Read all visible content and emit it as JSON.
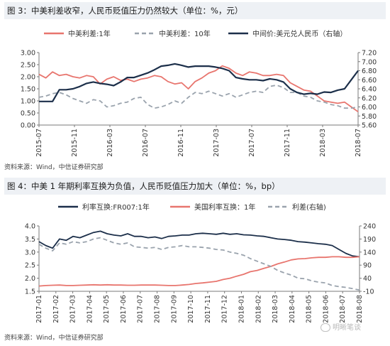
{
  "figure1": {
    "title": "图 3：中美利差收窄，人民币贬值压力仍然较大（单位：%，元）",
    "source": "资料来源：Wind，中信证券研究部"
  },
  "figure2": {
    "title": "图 4：中美 1 年期利率互换为负值，人民币贬值压力加大（单位：%，bp）",
    "source": "资料来源：Wind，中信证券研究部"
  },
  "watermark": "明晰笔谈",
  "chart_data": [
    {
      "type": "line",
      "x_labels": [
        "2015-07",
        "2015-11",
        "2016-03",
        "2016-07",
        "2016-11",
        "2017-03",
        "2017-07",
        "2017-11",
        "2018-03",
        "2018-07"
      ],
      "ylim_left": [
        0.0,
        3.0
      ],
      "yticks_left": [
        "3.00",
        "2.50",
        "2.00",
        "1.50",
        "1.00",
        "0.50",
        "0.00"
      ],
      "ylim_right": [
        5.6,
        7.2
      ],
      "yticks_right": [
        "7.20",
        "7.00",
        "6.80",
        "6.60",
        "6.40",
        "6.20",
        "6.00",
        "5.80",
        "5.60"
      ],
      "grid": false,
      "legend_position": "top",
      "series": [
        {
          "name": "中美利差:1年",
          "axis": "left",
          "color": "#e8756e",
          "dash": "",
          "values": [
            2.1,
            1.95,
            2.2,
            2.05,
            2.1,
            2.0,
            1.95,
            2.05,
            2.0,
            1.7,
            1.9,
            2.0,
            1.85,
            1.9,
            1.8,
            1.9,
            1.95,
            2.05,
            2.0,
            1.8,
            1.7,
            1.75,
            1.5,
            1.8,
            1.95,
            2.15,
            2.25,
            2.45,
            2.35,
            2.15,
            2.05,
            2.2,
            2.15,
            2.05,
            2.05,
            2.1,
            2.05,
            1.75,
            1.6,
            1.45,
            1.4,
            1.2,
            1.0,
            0.95,
            0.9,
            0.95,
            0.75,
            0.55
          ]
        },
        {
          "name": "中美利差：10年",
          "axis": "left",
          "color": "#9aa3ad",
          "dash": "6,4",
          "values": [
            1.15,
            1.2,
            1.3,
            1.35,
            1.25,
            1.1,
            1.0,
            0.9,
            1.05,
            1.0,
            0.75,
            0.8,
            0.9,
            0.95,
            1.1,
            1.15,
            0.85,
            0.7,
            0.75,
            0.85,
            1.0,
            0.9,
            1.15,
            1.35,
            1.3,
            1.4,
            1.3,
            1.2,
            1.3,
            1.15,
            1.25,
            1.35,
            1.4,
            1.35,
            1.6,
            1.65,
            1.55,
            1.35,
            1.35,
            1.2,
            1.15,
            1.0,
            0.95,
            0.85,
            0.8,
            0.7,
            0.7,
            0.75
          ]
        },
        {
          "name": "中间价:美元兑人民币（右轴）",
          "axis": "right",
          "color": "#1c2f4a",
          "dash": "",
          "values": [
            6.12,
            6.12,
            6.12,
            6.38,
            6.38,
            6.4,
            6.45,
            6.52,
            6.55,
            6.52,
            6.5,
            6.47,
            6.55,
            6.65,
            6.65,
            6.7,
            6.75,
            6.82,
            6.9,
            6.92,
            6.95,
            6.92,
            6.88,
            6.9,
            6.9,
            6.9,
            6.88,
            6.85,
            6.8,
            6.65,
            6.62,
            6.6,
            6.6,
            6.58,
            6.62,
            6.6,
            6.55,
            6.4,
            6.32,
            6.28,
            6.3,
            6.28,
            6.33,
            6.32,
            6.37,
            6.4,
            6.6,
            6.8
          ]
        }
      ]
    },
    {
      "type": "line",
      "x_labels": [
        "2017-01",
        "2017-02",
        "2017-03",
        "2017-04",
        "2017-05",
        "2017-06",
        "2017-07",
        "2017-08",
        "2017-09",
        "2017-10",
        "2017-11",
        "2017-12",
        "2018-01",
        "2018-02",
        "2018-03",
        "2018-04",
        "2018-05",
        "2018-06",
        "2018-07",
        "2018-08"
      ],
      "ylim_left": [
        1.5,
        4.0
      ],
      "yticks_left": [
        "4.0",
        "3.5",
        "3.0",
        "2.5",
        "2.0",
        "1.5"
      ],
      "ylim_right": [
        -10,
        240
      ],
      "yticks_right": [
        "240",
        "190",
        "140",
        "90",
        "40",
        "-10"
      ],
      "grid": false,
      "legend_position": "top",
      "series": [
        {
          "name": "利率互换:FR007:1年",
          "axis": "left",
          "color": "#1c2f4a",
          "dash": "",
          "values": [
            3.4,
            3.25,
            3.15,
            3.5,
            3.45,
            3.6,
            3.55,
            3.65,
            3.75,
            3.8,
            3.7,
            3.65,
            3.62,
            3.7,
            3.6,
            3.6,
            3.55,
            3.58,
            3.52,
            3.6,
            3.62,
            3.65,
            3.65,
            3.7,
            3.72,
            3.7,
            3.68,
            3.72,
            3.68,
            3.7,
            3.66,
            3.65,
            3.62,
            3.6,
            3.55,
            3.5,
            3.48,
            3.45,
            3.4,
            3.38,
            3.35,
            3.32,
            3.3,
            3.25,
            3.1,
            2.95,
            2.85,
            2.82
          ]
        },
        {
          "name": "美国利率互换：1年",
          "axis": "left",
          "color": "#e8756e",
          "dash": "",
          "values": [
            1.7,
            1.72,
            1.73,
            1.74,
            1.72,
            1.72,
            1.73,
            1.74,
            1.75,
            1.74,
            1.75,
            1.74,
            1.74,
            1.73,
            1.73,
            1.74,
            1.74,
            1.74,
            1.73,
            1.72,
            1.72,
            1.74,
            1.76,
            1.8,
            1.82,
            1.85,
            1.88,
            1.95,
            2.0,
            2.08,
            2.15,
            2.25,
            2.3,
            2.38,
            2.45,
            2.55,
            2.62,
            2.7,
            2.74,
            2.75,
            2.78,
            2.8,
            2.8,
            2.82,
            2.82,
            2.8,
            2.8,
            2.82
          ]
        },
        {
          "name": "利差(右轴)",
          "axis": "right",
          "color": "#9aa3ad",
          "dash": "6,4",
          "values": [
            170,
            155,
            145,
            175,
            170,
            180,
            175,
            180,
            190,
            195,
            185,
            175,
            170,
            175,
            160,
            158,
            155,
            158,
            150,
            158,
            160,
            165,
            160,
            160,
            158,
            155,
            150,
            148,
            140,
            135,
            128,
            115,
            105,
            95,
            85,
            70,
            60,
            52,
            40,
            38,
            30,
            25,
            22,
            12,
            8,
            5,
            0,
            -5
          ]
        }
      ]
    }
  ]
}
